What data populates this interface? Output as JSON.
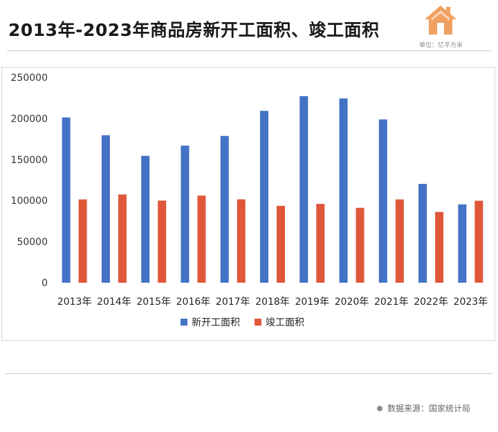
{
  "header": {
    "title": "2013年-2023年商品房新开工面积、竣工面积",
    "unit": "单位：亿平方米",
    "logo_icon": "house-icon"
  },
  "footer": {
    "source": "数据来源：国家统计局"
  },
  "colors": {
    "series_new": "#4472c4",
    "series_done": "#e0573a",
    "logo": "#f0a060"
  },
  "chart_data": {
    "type": "bar",
    "title": "",
    "xlabel": "",
    "ylabel": "",
    "ylim": [
      0,
      250000
    ],
    "yticks": [
      0,
      50000,
      100000,
      150000,
      200000,
      250000
    ],
    "grid": false,
    "legend": "bottom",
    "categories": [
      "2013年",
      "2014年",
      "2015年",
      "2016年",
      "2017年",
      "2018年",
      "2019年",
      "2020年",
      "2021年",
      "2022年",
      "2023年"
    ],
    "series": [
      {
        "name": "新开工面积",
        "values": [
          201200,
          179600,
          154500,
          166900,
          178700,
          209300,
          227200,
          224400,
          198900,
          120300,
          95400
        ]
      },
      {
        "name": "竣工面积",
        "values": [
          101400,
          107500,
          100000,
          106100,
          101500,
          93600,
          96000,
          91200,
          101400,
          86200,
          99800
        ]
      }
    ]
  }
}
